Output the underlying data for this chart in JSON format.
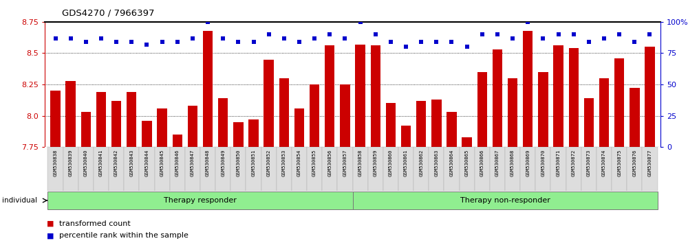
{
  "title": "GDS4270 / 7966397",
  "samples": [
    "GSM530838",
    "GSM530839",
    "GSM530840",
    "GSM530841",
    "GSM530842",
    "GSM530843",
    "GSM530844",
    "GSM530845",
    "GSM530846",
    "GSM530847",
    "GSM530848",
    "GSM530849",
    "GSM530850",
    "GSM530851",
    "GSM530852",
    "GSM530853",
    "GSM530854",
    "GSM530855",
    "GSM530856",
    "GSM530857",
    "GSM530858",
    "GSM530859",
    "GSM530860",
    "GSM530861",
    "GSM530862",
    "GSM530863",
    "GSM530864",
    "GSM530865",
    "GSM530866",
    "GSM530867",
    "GSM530868",
    "GSM530869",
    "GSM530870",
    "GSM530871",
    "GSM530872",
    "GSM530873",
    "GSM530874",
    "GSM530875",
    "GSM530876",
    "GSM530877"
  ],
  "bar_values": [
    8.2,
    8.28,
    8.03,
    8.19,
    8.12,
    8.19,
    7.96,
    8.06,
    7.85,
    8.08,
    8.68,
    8.14,
    7.95,
    7.97,
    8.45,
    8.3,
    8.06,
    8.25,
    8.56,
    8.25,
    8.57,
    8.56,
    8.1,
    7.92,
    8.12,
    8.13,
    8.03,
    7.83,
    8.35,
    8.53,
    8.3,
    8.68,
    8.35,
    8.56,
    8.54,
    8.14,
    8.3,
    8.46,
    8.22,
    8.55
  ],
  "percentile_values": [
    87,
    87,
    84,
    87,
    84,
    84,
    82,
    84,
    84,
    87,
    100,
    87,
    84,
    84,
    90,
    87,
    84,
    87,
    90,
    87,
    100,
    90,
    84,
    80,
    84,
    84,
    84,
    80,
    90,
    90,
    87,
    100,
    87,
    90,
    90,
    84,
    87,
    90,
    84,
    90
  ],
  "group1_size": 20,
  "group2_size": 20,
  "group1_label": "Therapy responder",
  "group2_label": "Therapy non-responder",
  "group_color": "#90EE90",
  "group_edge_color": "#888888",
  "bar_color": "#CC0000",
  "dot_color": "#0000CC",
  "ylim_left": [
    7.75,
    8.75
  ],
  "ylim_right": [
    0,
    100
  ],
  "yticks_left": [
    7.75,
    8.0,
    8.25,
    8.5,
    8.75
  ],
  "yticks_right": [
    0,
    25,
    50,
    75,
    100
  ],
  "legend_label_bar": "transformed count",
  "legend_label_dot": "percentile rank within the sample",
  "individual_label": "individual"
}
